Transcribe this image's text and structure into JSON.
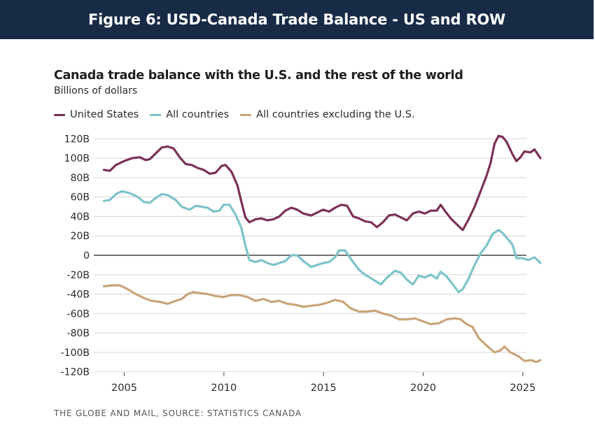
{
  "header": {
    "title": "Figure 6: USD-Canada Trade Balance - US and ROW"
  },
  "source": "THE GLOBE AND MAIL, SOURCE: STATISTICS CANADA",
  "chart_data": {
    "type": "line",
    "title": "Canada trade balance with the U.S. and the rest of the world",
    "subtitle": "Billions of dollars",
    "xlabel": "",
    "ylabel": "Billions of dollars",
    "xlim": [
      2003.0,
      2025.2
    ],
    "ylim": [
      -120,
      120
    ],
    "x_ticks": [
      2005,
      2010,
      2015,
      2020,
      2025
    ],
    "x_tick_labels": [
      "2005",
      "2010",
      "2015",
      "2020",
      "2025"
    ],
    "y_ticks": [
      120,
      100,
      80,
      60,
      40,
      20,
      0,
      -20,
      -40,
      -60,
      -80,
      -100,
      -120
    ],
    "y_tick_labels": [
      "120B",
      "100B",
      "80B",
      "60B",
      "40B",
      "20B",
      "0",
      "-20B",
      "-40B",
      "-60B",
      "-80B",
      "-100B",
      "-120B"
    ],
    "grid": true,
    "legend_position": "top-left",
    "series": [
      {
        "name": "United States",
        "color": "#7b3157",
        "points": [
          [
            2004.0,
            88
          ],
          [
            2004.3,
            87
          ],
          [
            2004.6,
            93
          ],
          [
            2005.0,
            97
          ],
          [
            2005.4,
            100
          ],
          [
            2005.8,
            101
          ],
          [
            2006.1,
            98
          ],
          [
            2006.3,
            99
          ],
          [
            2006.6,
            105
          ],
          [
            2006.9,
            111
          ],
          [
            2007.2,
            112
          ],
          [
            2007.5,
            110
          ],
          [
            2007.8,
            101
          ],
          [
            2008.1,
            94
          ],
          [
            2008.4,
            93
          ],
          [
            2008.7,
            90
          ],
          [
            2009.0,
            88
          ],
          [
            2009.3,
            84
          ],
          [
            2009.6,
            85
          ],
          [
            2009.9,
            92
          ],
          [
            2010.1,
            93
          ],
          [
            2010.4,
            86
          ],
          [
            2010.7,
            72
          ],
          [
            2010.9,
            55
          ],
          [
            2011.1,
            39
          ],
          [
            2011.3,
            34
          ],
          [
            2011.6,
            37
          ],
          [
            2011.9,
            38
          ],
          [
            2012.2,
            36
          ],
          [
            2012.5,
            37
          ],
          [
            2012.8,
            40
          ],
          [
            2013.1,
            46
          ],
          [
            2013.4,
            49
          ],
          [
            2013.7,
            47
          ],
          [
            2014.0,
            43
          ],
          [
            2014.4,
            41
          ],
          [
            2014.7,
            44
          ],
          [
            2015.0,
            47
          ],
          [
            2015.3,
            45
          ],
          [
            2015.6,
            49
          ],
          [
            2015.9,
            52
          ],
          [
            2016.2,
            51
          ],
          [
            2016.5,
            40
          ],
          [
            2016.8,
            38
          ],
          [
            2017.1,
            35
          ],
          [
            2017.4,
            34
          ],
          [
            2017.7,
            29
          ],
          [
            2018.0,
            34
          ],
          [
            2018.3,
            41
          ],
          [
            2018.6,
            42
          ],
          [
            2018.9,
            39
          ],
          [
            2019.2,
            36
          ],
          [
            2019.5,
            43
          ],
          [
            2019.8,
            45
          ],
          [
            2020.1,
            43
          ],
          [
            2020.4,
            46
          ],
          [
            2020.7,
            46
          ],
          [
            2020.9,
            52
          ],
          [
            2021.1,
            46
          ],
          [
            2021.4,
            38
          ],
          [
            2021.7,
            32
          ],
          [
            2022.0,
            26
          ],
          [
            2022.3,
            37
          ],
          [
            2022.6,
            50
          ],
          [
            2022.9,
            66
          ],
          [
            2023.2,
            82
          ],
          [
            2023.4,
            95
          ],
          [
            2023.6,
            115
          ],
          [
            2023.8,
            123
          ],
          [
            2024.0,
            122
          ],
          [
            2024.2,
            117
          ],
          [
            2024.5,
            104
          ],
          [
            2024.7,
            97
          ],
          [
            2024.9,
            101
          ],
          [
            2025.1,
            107
          ],
          [
            2025.4,
            106
          ],
          [
            2025.6,
            109
          ],
          [
            2025.9,
            100
          ]
        ]
      },
      {
        "name": "All countries",
        "color": "#7dc3c9",
        "points": [
          [
            2004.0,
            56
          ],
          [
            2004.3,
            57
          ],
          [
            2004.6,
            63
          ],
          [
            2004.9,
            66
          ],
          [
            2005.3,
            64
          ],
          [
            2005.7,
            60
          ],
          [
            2006.0,
            55
          ],
          [
            2006.3,
            54
          ],
          [
            2006.6,
            59
          ],
          [
            2006.9,
            63
          ],
          [
            2007.2,
            62
          ],
          [
            2007.6,
            57
          ],
          [
            2007.9,
            50
          ],
          [
            2008.3,
            47
          ],
          [
            2008.6,
            51
          ],
          [
            2008.9,
            50
          ],
          [
            2009.2,
            49
          ],
          [
            2009.5,
            45
          ],
          [
            2009.8,
            46
          ],
          [
            2010.0,
            52
          ],
          [
            2010.3,
            52
          ],
          [
            2010.6,
            42
          ],
          [
            2010.9,
            28
          ],
          [
            2011.1,
            10
          ],
          [
            2011.3,
            -5
          ],
          [
            2011.6,
            -7
          ],
          [
            2011.9,
            -5
          ],
          [
            2012.2,
            -8
          ],
          [
            2012.5,
            -10
          ],
          [
            2012.8,
            -8
          ],
          [
            2013.1,
            -6
          ],
          [
            2013.4,
            0
          ],
          [
            2013.7,
            0
          ],
          [
            2014.0,
            -6
          ],
          [
            2014.4,
            -12
          ],
          [
            2014.7,
            -10
          ],
          [
            2015.0,
            -8
          ],
          [
            2015.3,
            -7
          ],
          [
            2015.6,
            -2
          ],
          [
            2015.8,
            5
          ],
          [
            2016.1,
            5
          ],
          [
            2016.4,
            -4
          ],
          [
            2016.8,
            -15
          ],
          [
            2017.1,
            -20
          ],
          [
            2017.5,
            -25
          ],
          [
            2017.9,
            -30
          ],
          [
            2018.2,
            -23
          ],
          [
            2018.6,
            -16
          ],
          [
            2018.9,
            -18
          ],
          [
            2019.2,
            -25
          ],
          [
            2019.5,
            -30
          ],
          [
            2019.8,
            -21
          ],
          [
            2020.1,
            -23
          ],
          [
            2020.4,
            -20
          ],
          [
            2020.7,
            -24
          ],
          [
            2020.9,
            -17
          ],
          [
            2021.2,
            -22
          ],
          [
            2021.5,
            -30
          ],
          [
            2021.8,
            -38
          ],
          [
            2022.0,
            -35
          ],
          [
            2022.3,
            -24
          ],
          [
            2022.6,
            -10
          ],
          [
            2022.9,
            2
          ],
          [
            2023.2,
            10
          ],
          [
            2023.5,
            22
          ],
          [
            2023.8,
            26
          ],
          [
            2024.0,
            23
          ],
          [
            2024.3,
            16
          ],
          [
            2024.5,
            11
          ],
          [
            2024.7,
            -3
          ],
          [
            2025.0,
            -3
          ],
          [
            2025.3,
            -5
          ],
          [
            2025.6,
            -2
          ],
          [
            2025.9,
            -8
          ]
        ]
      },
      {
        "name": "All countries excluding the U.S.",
        "color": "#c9a579",
        "points": [
          [
            2004.0,
            -32
          ],
          [
            2004.4,
            -31
          ],
          [
            2004.8,
            -31
          ],
          [
            2005.2,
            -35
          ],
          [
            2005.6,
            -40
          ],
          [
            2006.0,
            -44
          ],
          [
            2006.4,
            -47
          ],
          [
            2006.8,
            -48
          ],
          [
            2007.2,
            -50
          ],
          [
            2007.6,
            -47
          ],
          [
            2007.9,
            -45
          ],
          [
            2008.2,
            -40
          ],
          [
            2008.5,
            -38
          ],
          [
            2008.8,
            -39
          ],
          [
            2009.2,
            -40
          ],
          [
            2009.6,
            -42
          ],
          [
            2010.0,
            -43
          ],
          [
            2010.4,
            -41
          ],
          [
            2010.8,
            -41
          ],
          [
            2011.2,
            -43
          ],
          [
            2011.6,
            -47
          ],
          [
            2012.0,
            -45
          ],
          [
            2012.4,
            -48
          ],
          [
            2012.8,
            -47
          ],
          [
            2013.2,
            -50
          ],
          [
            2013.6,
            -51
          ],
          [
            2014.0,
            -53
          ],
          [
            2014.4,
            -52
          ],
          [
            2014.8,
            -51
          ],
          [
            2015.2,
            -49
          ],
          [
            2015.6,
            -46
          ],
          [
            2016.0,
            -48
          ],
          [
            2016.4,
            -55
          ],
          [
            2016.8,
            -58
          ],
          [
            2017.2,
            -58
          ],
          [
            2017.6,
            -57
          ],
          [
            2018.0,
            -60
          ],
          [
            2018.4,
            -62
          ],
          [
            2018.8,
            -66
          ],
          [
            2019.2,
            -66
          ],
          [
            2019.6,
            -65
          ],
          [
            2020.0,
            -68
          ],
          [
            2020.4,
            -71
          ],
          [
            2020.8,
            -70
          ],
          [
            2021.2,
            -66
          ],
          [
            2021.6,
            -65
          ],
          [
            2021.9,
            -66
          ],
          [
            2022.2,
            -71
          ],
          [
            2022.5,
            -74
          ],
          [
            2022.8,
            -85
          ],
          [
            2023.2,
            -93
          ],
          [
            2023.6,
            -100
          ],
          [
            2023.9,
            -98
          ],
          [
            2024.1,
            -94
          ],
          [
            2024.4,
            -100
          ],
          [
            2024.8,
            -104
          ],
          [
            2025.1,
            -109
          ],
          [
            2025.4,
            -108
          ],
          [
            2025.7,
            -110
          ],
          [
            2025.9,
            -108
          ]
        ]
      }
    ]
  }
}
